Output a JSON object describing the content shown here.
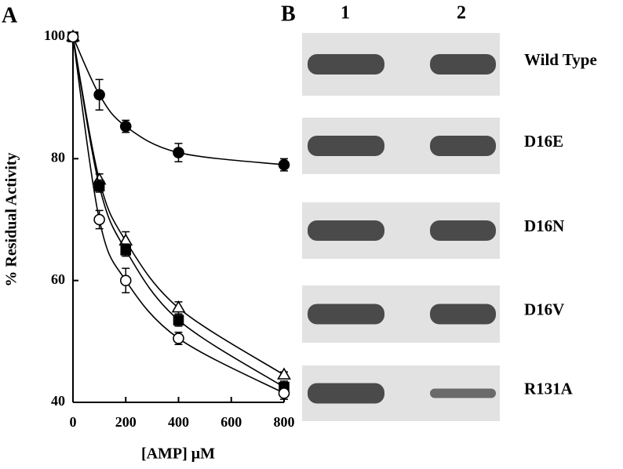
{
  "panels": {
    "a": "A",
    "b": "B"
  },
  "chart_data": {
    "type": "line",
    "x_label": "[AMP] μM",
    "y_label": "% Residual Activity",
    "x": [
      0,
      100,
      200,
      400,
      800
    ],
    "xlim": [
      0,
      800
    ],
    "xticks": [
      0,
      200,
      400,
      600,
      800
    ],
    "ylim": [
      40,
      100
    ],
    "yticks": [
      40,
      60,
      80,
      100
    ],
    "series": [
      {
        "color": "#000000",
        "marker": "circle",
        "filled": true,
        "values": [
          100,
          90.5,
          85.3,
          81,
          79
        ],
        "errors": [
          0,
          2.5,
          1,
          1.5,
          1
        ]
      },
      {
        "color": "#000000",
        "marker": "triangle",
        "filled": false,
        "values": [
          100,
          76.5,
          66.5,
          55.5,
          44.5
        ],
        "errors": [
          0,
          1,
          1.5,
          1,
          0.5
        ]
      },
      {
        "color": "#000000",
        "marker": "square",
        "filled": true,
        "values": [
          100,
          75.5,
          65,
          53.5,
          42.5
        ],
        "errors": [
          0,
          1,
          1,
          1,
          1
        ]
      },
      {
        "color": "#000000",
        "marker": "circle",
        "filled": false,
        "values": [
          100,
          70,
          60,
          50.5,
          41.5
        ],
        "errors": [
          0,
          1.5,
          2,
          1,
          1
        ]
      }
    ]
  },
  "gel": {
    "lanes": [
      "1",
      "2"
    ],
    "rows": [
      "Wild Type",
      "D16E",
      "D16N",
      "D16V",
      "R131A"
    ]
  }
}
